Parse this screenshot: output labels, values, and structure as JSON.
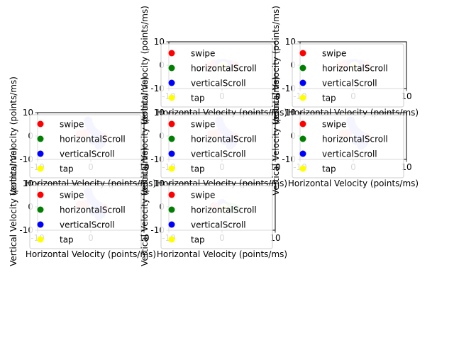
{
  "chart_data": [
    {
      "type": "scatter",
      "xlabel": "Horizontal Velocity (points/ms)",
      "ylabel": "Vertical Velocity (points/ms)",
      "xlim": [
        -10,
        10
      ],
      "ylim": [
        -10,
        10
      ],
      "xticks": [
        -10,
        0,
        10
      ],
      "yticks": [
        10,
        0,
        -10
      ],
      "legend_position": "left",
      "series": [
        {
          "name": "swipe",
          "x": [
            -2.5,
            -1.5,
            1.5,
            2.5,
            -0.5,
            0.5
          ],
          "y": [
            -0.3,
            0.5,
            0.5,
            -0.3,
            0.8,
            0.9
          ]
        },
        {
          "name": "horizontalScroll",
          "x": [],
          "y": []
        },
        {
          "name": "verticalScroll",
          "x": [
            -0.5,
            0.3,
            1.0,
            0.0
          ],
          "y": [
            0.8,
            0.6,
            0.4,
            0.9
          ]
        },
        {
          "name": "tap",
          "x": [
            0.0,
            0.3
          ],
          "y": [
            -0.5,
            -0.2
          ]
        }
      ]
    },
    {
      "type": "scatter",
      "xlabel": "Horizontal Velocity (points/ms)",
      "ylabel": "Vertical Velocity (points/ms)",
      "xlim": [
        -10,
        10
      ],
      "ylim": [
        -10,
        10
      ],
      "xticks": [
        -10,
        0,
        10
      ],
      "yticks": [
        10,
        0,
        -10
      ],
      "legend_position": "left",
      "series": [
        {
          "name": "swipe",
          "x": [
            -2.5,
            -1.5,
            1.5,
            2.5,
            0.5
          ],
          "y": [
            -0.3,
            0.5,
            0.5,
            -0.3,
            0.9
          ]
        },
        {
          "name": "horizontalScroll",
          "x": [],
          "y": []
        },
        {
          "name": "verticalScroll",
          "x": [
            -0.5,
            0.3,
            1.0,
            0.0
          ],
          "y": [
            0.8,
            0.6,
            0.4,
            0.9
          ]
        },
        {
          "name": "tap",
          "x": [
            0.0,
            0.3
          ],
          "y": [
            -0.5,
            -0.2
          ]
        }
      ]
    },
    {
      "type": "scatter",
      "xlabel": "Horizontal Velocity (points/ms)",
      "ylabel": "Vertical Velocity (points/ms)",
      "xlim": [
        -10,
        10
      ],
      "ylim": [
        -10,
        10
      ],
      "xticks": [
        -10,
        0,
        10
      ],
      "yticks": [
        10,
        0,
        -10
      ],
      "legend_position": "left",
      "series": [
        {
          "name": "swipe",
          "x": [
            -2.0,
            -1.0,
            1.5,
            2.5
          ],
          "y": [
            0.8,
            1.2,
            0.5,
            -0.5
          ]
        },
        {
          "name": "horizontalScroll",
          "x": [],
          "y": []
        },
        {
          "name": "verticalScroll",
          "x": [
            -0.5,
            -0.3,
            0.0,
            0.3,
            0.8,
            1.2,
            1.8,
            2.0,
            1.5,
            0.5
          ],
          "y": [
            6.5,
            5.0,
            3.5,
            2.5,
            1.5,
            0.5,
            -1.5,
            -3.0,
            -4.0,
            -2.0
          ]
        },
        {
          "name": "tap",
          "x": [],
          "y": []
        }
      ]
    },
    {
      "type": "scatter",
      "xlabel": "Horizontal Velocity (points/ms)",
      "ylabel": "Vertical Velocity (points/ms)",
      "xlim": [
        -10,
        10
      ],
      "ylim": [
        -10,
        10
      ],
      "xticks": [
        -10,
        0,
        10
      ],
      "yticks": [
        10,
        0,
        -10
      ],
      "legend_position": "left",
      "series": [
        {
          "name": "swipe",
          "x": [
            -2.0,
            -1.0,
            1.5,
            2.5
          ],
          "y": [
            0.8,
            1.2,
            0.5,
            -0.5
          ]
        },
        {
          "name": "horizontalScroll",
          "x": [],
          "y": []
        },
        {
          "name": "verticalScroll",
          "x": [
            -0.5,
            -0.3,
            0.0,
            0.3,
            0.8,
            1.2,
            1.8,
            2.0,
            1.5,
            0.5
          ],
          "y": [
            6.5,
            5.0,
            3.5,
            2.5,
            1.5,
            0.5,
            -1.5,
            -3.0,
            -4.0,
            -2.0
          ]
        },
        {
          "name": "tap",
          "x": [],
          "y": []
        }
      ]
    },
    {
      "type": "scatter",
      "xlabel": "Horizontal Velocity (points/ms)",
      "ylabel": "Vertical Velocity (points/ms)",
      "xlim": [
        -10,
        10
      ],
      "ylim": [
        -10,
        10
      ],
      "xticks": [
        -10,
        0,
        10
      ],
      "yticks": [
        10,
        0,
        -10
      ],
      "legend_position": "left",
      "series": [
        {
          "name": "swipe",
          "x": [
            -2.0,
            -1.0,
            1.5,
            2.5
          ],
          "y": [
            0.8,
            1.2,
            0.5,
            -0.5
          ]
        },
        {
          "name": "horizontalScroll",
          "x": [],
          "y": []
        },
        {
          "name": "verticalScroll",
          "x": [
            -0.5,
            -0.3,
            0.0,
            0.3,
            0.8,
            1.2,
            1.8,
            2.0,
            1.5,
            0.5
          ],
          "y": [
            6.5,
            5.0,
            3.5,
            2.5,
            1.5,
            0.5,
            -1.5,
            -3.0,
            -4.0,
            -2.0
          ]
        },
        {
          "name": "tap",
          "x": [],
          "y": []
        }
      ]
    },
    {
      "type": "scatter",
      "xlabel": "Horizontal Velocity (points/ms)",
      "ylabel": "Vertical Velocity (points/ms)",
      "xlim": [
        -10,
        10
      ],
      "ylim": [
        -10,
        10
      ],
      "xticks": [
        -10,
        0,
        10
      ],
      "yticks": [
        10,
        0,
        -10
      ],
      "legend_position": "left",
      "series": [
        {
          "name": "swipe",
          "x": [
            -2.0,
            -1.0,
            1.5,
            2.5
          ],
          "y": [
            0.8,
            1.2,
            0.5,
            -0.5
          ]
        },
        {
          "name": "horizontalScroll",
          "x": [],
          "y": []
        },
        {
          "name": "verticalScroll",
          "x": [
            -0.5,
            -0.3,
            0.0,
            0.3,
            0.8,
            1.2,
            1.8,
            2.0,
            1.5,
            0.5
          ],
          "y": [
            6.5,
            5.0,
            3.5,
            2.5,
            1.5,
            0.5,
            -1.5,
            -3.0,
            -4.0,
            -2.0
          ]
        },
        {
          "name": "tap",
          "x": [],
          "y": []
        }
      ]
    },
    {
      "type": "scatter",
      "xlabel": "Horizontal Velocity (points/ms)",
      "ylabel": "Vertical Velocity (points/ms)",
      "xlim": [
        -10,
        10
      ],
      "ylim": [
        -10,
        10
      ],
      "xticks": [
        -10,
        0,
        10
      ],
      "yticks": [
        10,
        0,
        -10
      ],
      "legend_position": "left",
      "series": [
        {
          "name": "swipe",
          "x": [
            -1.5,
            -0.5
          ],
          "y": [
            0.2,
            0.6
          ]
        },
        {
          "name": "horizontalScroll",
          "x": [
            0.8,
            1.5,
            2.2,
            2.8
          ],
          "y": [
            0.4,
            0.0,
            -0.4,
            -0.8
          ]
        },
        {
          "name": "verticalScroll",
          "x": [
            0.0,
            0.2
          ],
          "y": [
            1.5,
            1.0
          ]
        },
        {
          "name": "tap",
          "x": [
            0.3
          ],
          "y": [
            -0.3
          ]
        }
      ]
    }
  ],
  "legend_colors": {
    "swipe": "#ff0000",
    "horizontalScroll": "#008000",
    "verticalScroll": "#0000ff",
    "tap": "#ffff00"
  },
  "point_colors": {
    "swipe": "#ffbcbc",
    "horizontalScroll": "#b7ddb7",
    "verticalScroll": "#bcbcff",
    "tap": "#ffffb0"
  }
}
